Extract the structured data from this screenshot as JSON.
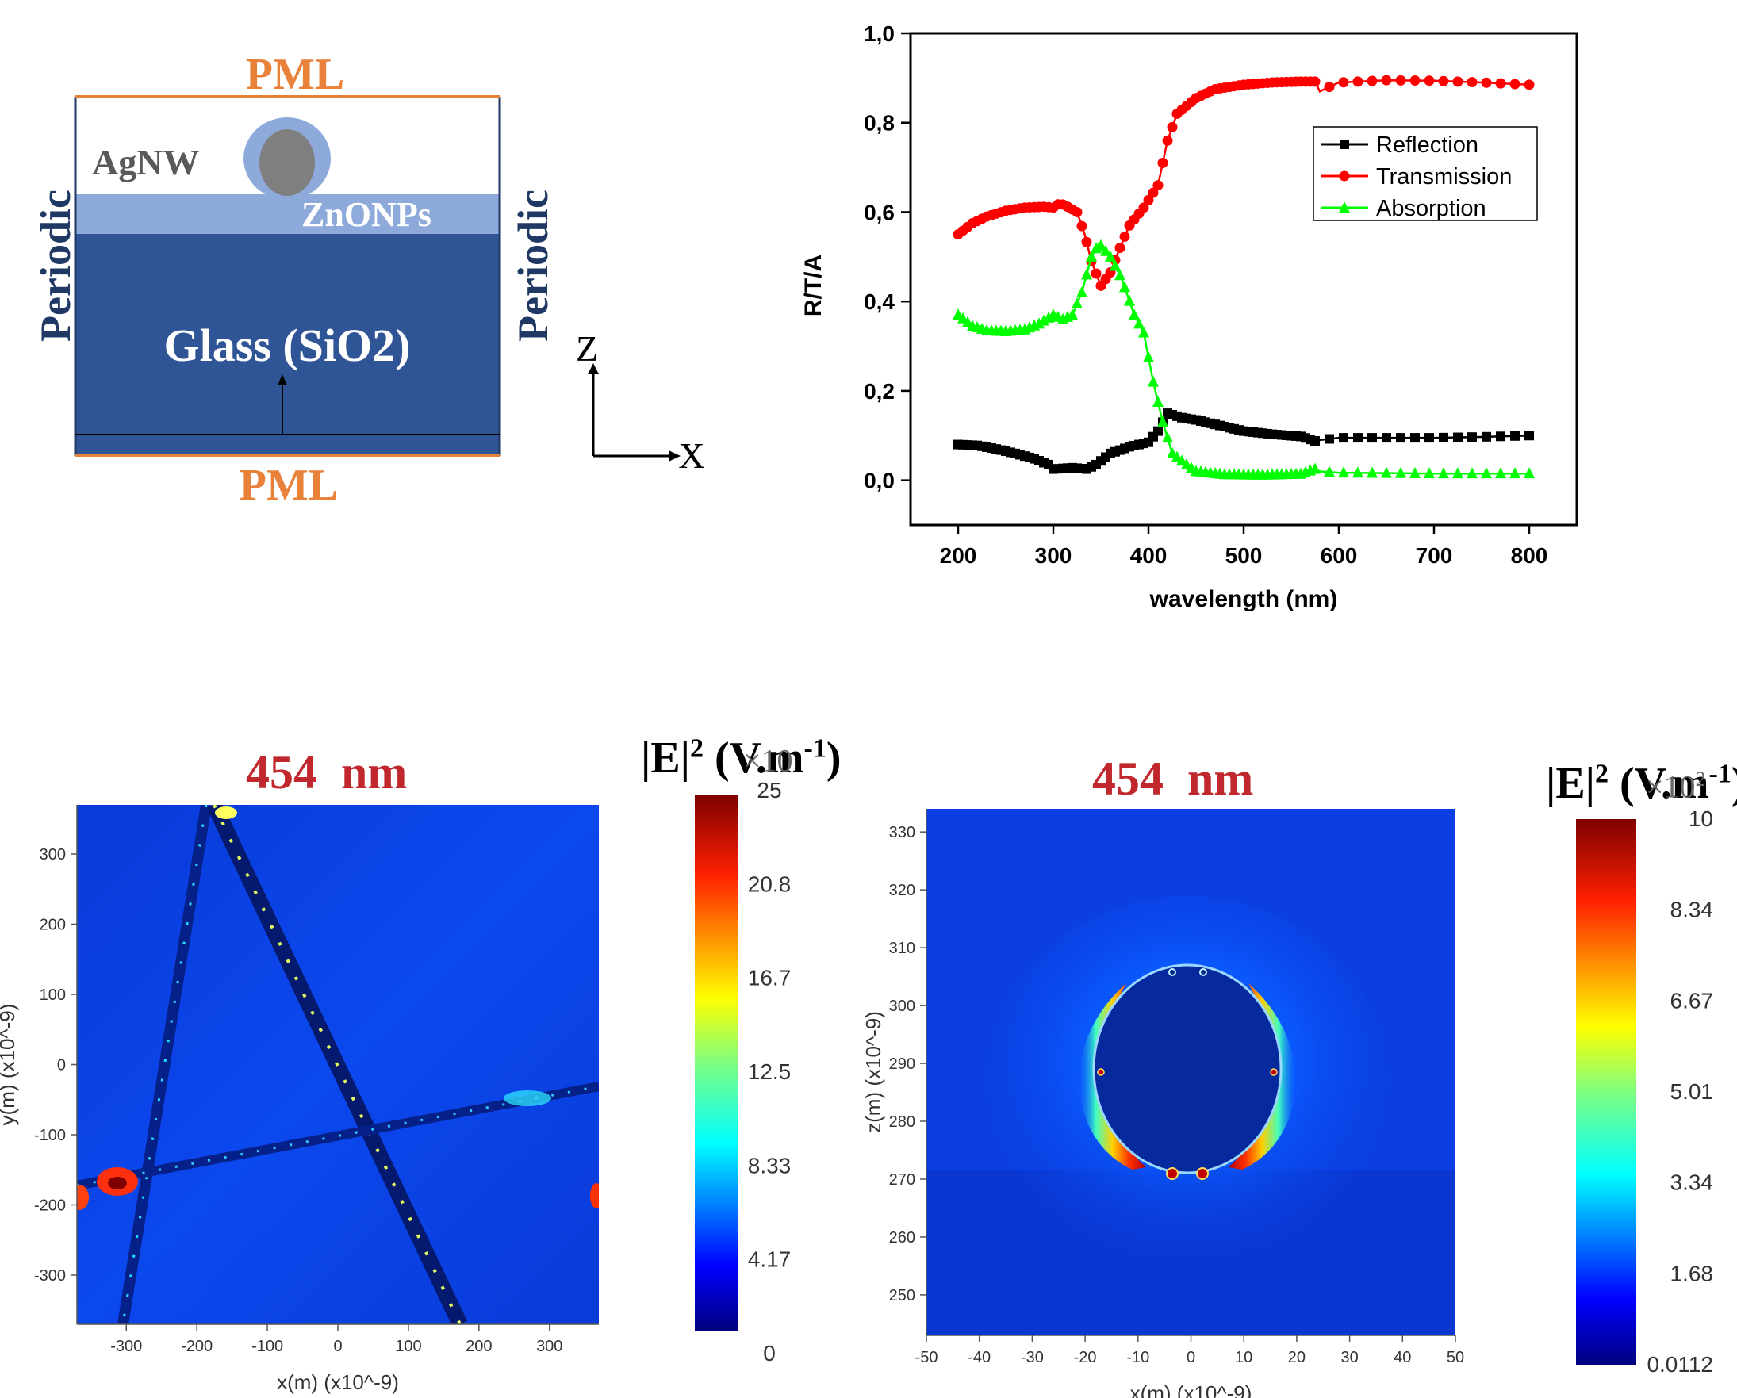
{
  "schematic": {
    "pml_top": "PML",
    "pml_bottom": "PML",
    "periodic_left": "Periodic",
    "periodic_right": "Periodic",
    "agnw": "AgNW",
    "zno": "ZnONPs",
    "glass": "Glass (SiO2)",
    "axis_z": "Z",
    "axis_x": "X",
    "colors": {
      "pml": "#e8823a",
      "glass": "#2f5597",
      "zno": "#8eaadb",
      "wire": "#7f7f7f",
      "navy": "#1f3864"
    }
  },
  "chart_data": [
    {
      "type": "line",
      "xlabel": "wavelength (nm)",
      "ylabel": "R/T/A",
      "xlim": [
        150,
        850
      ],
      "ylim": [
        -0.1,
        1.0
      ],
      "xticks": [
        "200",
        "300",
        "400",
        "500",
        "600",
        "700",
        "800"
      ],
      "yticks": [
        "0,0",
        "0,2",
        "0,4",
        "0,6",
        "0,8",
        "1,0"
      ],
      "legend_position": "top-right",
      "series": [
        {
          "name": "Reflection",
          "color": "#000000",
          "marker": "square",
          "points": [
            [
              200,
              0.08
            ],
            [
              220,
              0.078
            ],
            [
              240,
              0.07
            ],
            [
              260,
              0.06
            ],
            [
              280,
              0.048
            ],
            [
              295,
              0.035
            ],
            [
              300,
              0.025
            ],
            [
              320,
              0.028
            ],
            [
              335,
              0.025
            ],
            [
              345,
              0.035
            ],
            [
              360,
              0.06
            ],
            [
              380,
              0.075
            ],
            [
              400,
              0.085
            ],
            [
              410,
              0.11
            ],
            [
              420,
              0.15
            ],
            [
              435,
              0.14
            ],
            [
              450,
              0.135
            ],
            [
              470,
              0.125
            ],
            [
              500,
              0.11
            ],
            [
              530,
              0.103
            ],
            [
              560,
              0.098
            ],
            [
              575,
              0.088
            ],
            [
              580,
              0.09
            ],
            [
              600,
              0.095
            ],
            [
              650,
              0.095
            ],
            [
              700,
              0.095
            ],
            [
              750,
              0.097
            ],
            [
              800,
              0.1
            ]
          ]
        },
        {
          "name": "Transmission",
          "color": "#ff0000",
          "marker": "circle",
          "points": [
            [
              200,
              0.55
            ],
            [
              215,
              0.575
            ],
            [
              230,
              0.59
            ],
            [
              250,
              0.603
            ],
            [
              270,
              0.61
            ],
            [
              290,
              0.612
            ],
            [
              300,
              0.61
            ],
            [
              307,
              0.62
            ],
            [
              315,
              0.612
            ],
            [
              325,
              0.6
            ],
            [
              333,
              0.55
            ],
            [
              340,
              0.49
            ],
            [
              350,
              0.435
            ],
            [
              360,
              0.465
            ],
            [
              370,
              0.52
            ],
            [
              380,
              0.57
            ],
            [
              395,
              0.61
            ],
            [
              410,
              0.66
            ],
            [
              420,
              0.76
            ],
            [
              430,
              0.82
            ],
            [
              450,
              0.855
            ],
            [
              470,
              0.875
            ],
            [
              500,
              0.885
            ],
            [
              530,
              0.89
            ],
            [
              560,
              0.892
            ],
            [
              575,
              0.892
            ],
            [
              580,
              0.87
            ],
            [
              590,
              0.88
            ],
            [
              600,
              0.89
            ],
            [
              650,
              0.895
            ],
            [
              700,
              0.894
            ],
            [
              750,
              0.89
            ],
            [
              800,
              0.885
            ]
          ]
        },
        {
          "name": "Absorption",
          "color": "#00ff00",
          "marker": "triangle",
          "points": [
            [
              200,
              0.37
            ],
            [
              215,
              0.345
            ],
            [
              230,
              0.335
            ],
            [
              250,
              0.333
            ],
            [
              270,
              0.337
            ],
            [
              285,
              0.35
            ],
            [
              300,
              0.37
            ],
            [
              310,
              0.36
            ],
            [
              320,
              0.37
            ],
            [
              330,
              0.42
            ],
            [
              340,
              0.5
            ],
            [
              348,
              0.53
            ],
            [
              360,
              0.5
            ],
            [
              372,
              0.45
            ],
            [
              385,
              0.37
            ],
            [
              395,
              0.33
            ],
            [
              405,
              0.22
            ],
            [
              415,
              0.13
            ],
            [
              425,
              0.06
            ],
            [
              440,
              0.035
            ],
            [
              450,
              0.02
            ],
            [
              480,
              0.013
            ],
            [
              520,
              0.012
            ],
            [
              560,
              0.014
            ],
            [
              575,
              0.025
            ],
            [
              580,
              0.02
            ],
            [
              600,
              0.017
            ],
            [
              700,
              0.015
            ],
            [
              800,
              0.015
            ]
          ]
        }
      ]
    },
    {
      "type": "heatmap",
      "title": "454  nm",
      "xlabel": "x(m) (x10^-9)",
      "ylabel": "y(m) (x10^-9)",
      "xlim": [
        -370,
        370
      ],
      "ylim": [
        -370,
        370
      ],
      "xticks": [
        "-300",
        "-200",
        "-100",
        "0",
        "100",
        "200",
        "300"
      ],
      "yticks": [
        "300",
        "200",
        "100",
        "0",
        "-100",
        "-200",
        "-300"
      ],
      "colorbar": {
        "title": "|E|",
        "title_sup": "2",
        "unit": " (V.m",
        "unit_sup": "-1",
        "unit_close": ")",
        "multiplier": "×10",
        "multiplier_sup": "",
        "ticks": [
          "25",
          "20.8",
          "16.7",
          "12.5",
          "8.33",
          "4.17",
          "0"
        ]
      }
    },
    {
      "type": "heatmap",
      "title": "454  nm",
      "xlabel": "x(m) (x10^-9)",
      "ylabel": "z(m) (x10^-9)",
      "xlim": [
        -50,
        50
      ],
      "ylim": [
        243,
        334
      ],
      "xticks": [
        "-50",
        "-40",
        "-30",
        "-20",
        "-10",
        "0",
        "10",
        "20",
        "30",
        "40",
        "50"
      ],
      "yticks": [
        "330",
        "320",
        "310",
        "300",
        "290",
        "280",
        "270",
        "260",
        "250"
      ],
      "colorbar": {
        "title": "|E|",
        "title_sup": "2",
        "unit": " (V.m",
        "unit_sup": "-1",
        "unit_close": ")",
        "multiplier": "×10",
        "multiplier_sup": "2",
        "ticks": [
          "10",
          "8.34",
          "6.67",
          "5.01",
          "3.34",
          "1.68",
          "0.0112"
        ]
      }
    }
  ]
}
